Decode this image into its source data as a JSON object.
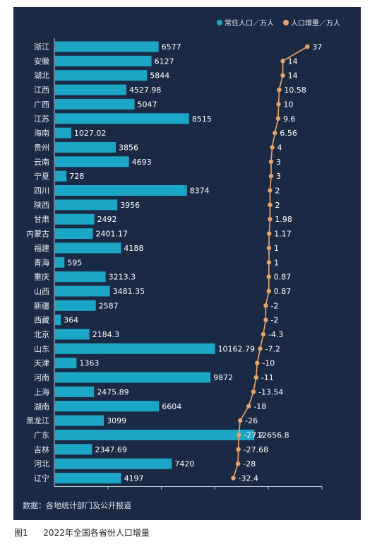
{
  "colors": {
    "panel_bg": "#1b2a44",
    "bar": "#1ba6c6",
    "line": "#e9a46b",
    "text": "#e8eef6"
  },
  "legend": {
    "population": "常住人口／万人",
    "growth": "人口增量／万人"
  },
  "source": "数据：各地统计部门及公开报道",
  "caption": {
    "number": "图1",
    "text": "2022年全国各省份人口增量"
  },
  "chart_data": {
    "type": "bar+line",
    "categories": [
      "浙江",
      "安徽",
      "湖北",
      "江西",
      "广西",
      "江苏",
      "海南",
      "贵州",
      "云南",
      "宁夏",
      "四川",
      "陕西",
      "甘肃",
      "内蒙古",
      "福建",
      "青海",
      "重庆",
      "山西",
      "新疆",
      "西藏",
      "北京",
      "山东",
      "天津",
      "河南",
      "上海",
      "湖南",
      "黑龙江",
      "广东",
      "吉林",
      "河北",
      "辽宁"
    ],
    "series": [
      {
        "name": "常住人口／万人",
        "type": "bar",
        "values": [
          6577,
          6127,
          5844,
          4527.98,
          5047,
          8515,
          1027.02,
          3856,
          4693,
          728,
          8374,
          3956,
          2492,
          2401.17,
          4188,
          595,
          3213.3,
          3481.35,
          2587,
          364,
          2184.3,
          10162.79,
          1363,
          9872,
          2475.89,
          6604,
          3099,
          12656.8,
          2347.69,
          7420,
          4197
        ],
        "labels": [
          "6577",
          "6127",
          "5844",
          "4527.98",
          "5047",
          "8515",
          "1027.02",
          "3856",
          "4693",
          "728",
          "8374",
          "3956",
          "2492",
          "2401.17",
          "4188",
          "595",
          "3213.3",
          "3481.35",
          "2587",
          "364",
          "2184.3",
          "10162.79",
          "1363",
          "9872",
          "2475.89",
          "6604",
          "3099",
          "12656.8",
          "2347.69",
          "7420",
          "4197"
        ]
      },
      {
        "name": "人口增量／万人",
        "type": "line",
        "values": [
          37,
          14,
          14,
          10.58,
          10,
          9.6,
          6.56,
          4,
          3,
          3,
          2,
          2,
          1.98,
          1.17,
          1,
          1,
          0.87,
          0.87,
          -2,
          -2,
          -4.3,
          -7.2,
          -10,
          -11,
          -13.54,
          -18,
          -26,
          -27.2,
          -27.68,
          -28,
          -32.4
        ],
        "labels": [
          "37",
          "14",
          "14",
          "10.58",
          "10",
          "9.6",
          "6.56",
          "4",
          "3",
          "3",
          "2",
          "2",
          "1.98",
          "1.17",
          "1",
          "1",
          "0.87",
          "0.87",
          "-2",
          "-2",
          "-4.3",
          "-7.2",
          "-10",
          "-11",
          "-13.54",
          "-18",
          "-26",
          "-27.2",
          "-27.68",
          "-28",
          "-32.4"
        ]
      }
    ],
    "bar_axis_max": 17000,
    "growth_axis_range": [
      -40,
      50
    ],
    "legend_position": "top-right",
    "grid": false
  }
}
